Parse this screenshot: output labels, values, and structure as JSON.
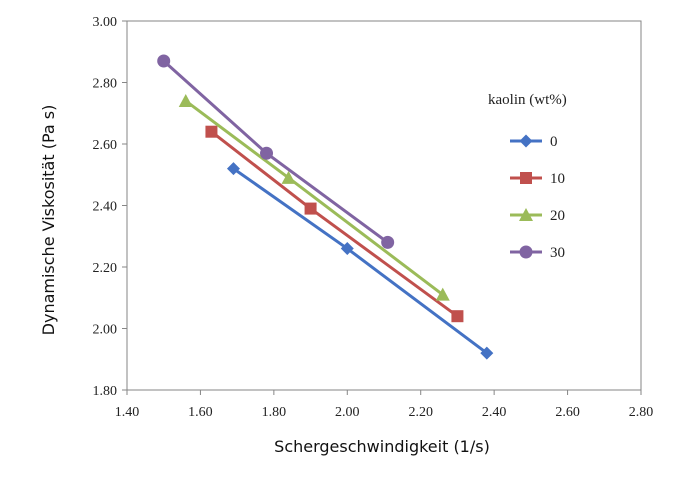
{
  "chart_data": {
    "type": "line",
    "xlabel": "Schergeschwindigkeit (1/s)",
    "ylabel": "Dynamische Viskosität (Pa s)",
    "xlim": [
      1.4,
      2.8
    ],
    "ylim": [
      1.8,
      3.0
    ],
    "x_ticks": [
      "1.40",
      "1.60",
      "1.80",
      "2.00",
      "2.20",
      "2.40",
      "2.60",
      "2.80"
    ],
    "y_ticks": [
      "1.80",
      "2.00",
      "2.20",
      "2.40",
      "2.60",
      "2.80",
      "3.00"
    ],
    "grid": false,
    "legend": {
      "title": "kaolin (wt%)",
      "placement": "right"
    },
    "series": [
      {
        "name": "0",
        "color": "#4472C4",
        "marker": "diamond",
        "points": [
          [
            1.69,
            2.52
          ],
          [
            2.0,
            2.26
          ],
          [
            2.38,
            1.92
          ]
        ]
      },
      {
        "name": "10",
        "color": "#C0504D",
        "marker": "square",
        "points": [
          [
            1.63,
            2.64
          ],
          [
            1.9,
            2.39
          ],
          [
            2.3,
            2.04
          ]
        ]
      },
      {
        "name": "20",
        "color": "#9BBB59",
        "marker": "triangle",
        "points": [
          [
            1.56,
            2.74
          ],
          [
            1.84,
            2.49
          ],
          [
            2.26,
            2.11
          ]
        ]
      },
      {
        "name": "30",
        "color": "#8064A2",
        "marker": "circle",
        "points": [
          [
            1.5,
            2.87
          ],
          [
            1.78,
            2.57
          ],
          [
            2.11,
            2.28
          ]
        ]
      }
    ]
  }
}
